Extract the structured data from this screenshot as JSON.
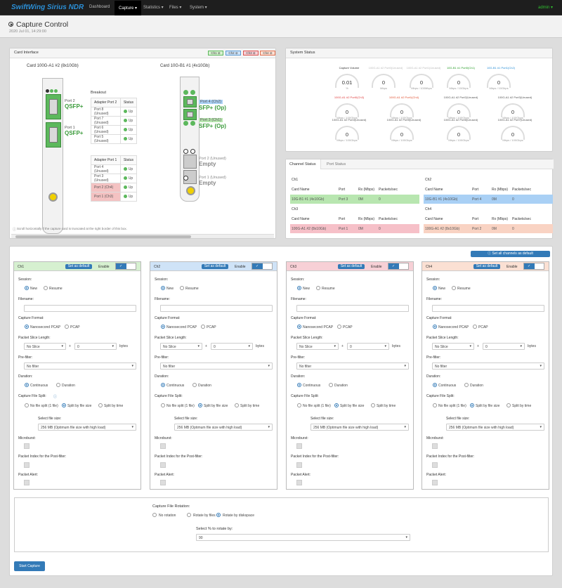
{
  "nav": {
    "brand": "SwiftWing Sirius NDR",
    "items": [
      "Dashboard",
      "Capture ▾",
      "Statistics ▾",
      "Files ▾",
      "System ▾"
    ],
    "user": "admin ▾"
  },
  "header": {
    "title": "Capture Control",
    "timestamp": "2020 Jul 01, 14:29:00"
  },
  "card_interface": {
    "title": "Card Interface",
    "chips": [
      "Ch1 ⊘",
      "Ch2 ⊘",
      "Ch3 ⊘",
      "Ch4 ⊘"
    ],
    "card1": {
      "name": "Card 100G-A1 #2 (8x10Gb)",
      "port2": "Port 2",
      "port2_type": "QSFP+",
      "port1": "Port 1",
      "port1_type": "QSFP+"
    },
    "card2": {
      "name": "Card 10G-B1 #1 (4x10Gb)",
      "p4": "Port 4 (Ch2)",
      "p4_type": "SFP+ (Op)",
      "p3": "Port 3 (Ch1)",
      "p3_type": "SFP+ (Op)",
      "p2": "Port 2 (Unused)",
      "p2_type": "Empty",
      "p1": "Port 1 (Unused)",
      "p1_type": "Empty"
    },
    "breakout": "Breakout",
    "table2": {
      "header": [
        "Adapter Port 2",
        "Status"
      ],
      "rows": [
        [
          "Port 8 (Unused)",
          "Up"
        ],
        [
          "Port 7 (Unused)",
          "Up"
        ],
        [
          "Port 6 (Unused)",
          "Up"
        ],
        [
          "Port 5 (Unused)",
          "Up"
        ]
      ]
    },
    "table1": {
      "header": [
        "Adapter Port 1",
        "Status"
      ],
      "rows": [
        [
          "Port 4 (Unused)",
          "Up"
        ],
        [
          "Port 3 (Unused)",
          "Up"
        ],
        [
          "Port 2 (Ch4)",
          "Up"
        ],
        [
          "Port 1 (Ch3)",
          "Up"
        ]
      ]
    },
    "note": "Scroll horizontally if the capture card is truncated at the right border of this box."
  },
  "system_status": {
    "title": "System Status",
    "gauges": [
      {
        "t": "Capture Volume",
        "v": "0.01",
        "s": "%",
        "c": "#333"
      },
      {
        "t": "100G-A1 #2 Port0(Unused)",
        "v": "0",
        "s": "Mbps",
        "c": "#bbb"
      },
      {
        "t": "100G-A1 #2 Port1(Unused)",
        "v": "0",
        "s": "Mbps / 100Mbps",
        "c": "#bbb"
      },
      {
        "t": "10G-B1 #1 Port0(Ch1)",
        "v": "0",
        "s": "Mbps / 10Gbps",
        "c": "#2a9d2a"
      },
      {
        "t": "10G-B1 #1 Port1(Ch2)",
        "v": "0",
        "s": "Mbps / 10Gbps",
        "c": "#2a8fd6"
      },
      {
        "t": "100G-A1 #2 Port0(Ch3)",
        "v": "0",
        "s": "Mbps / 100Gbps",
        "c": "#e04040"
      },
      {
        "t": "100G-A1 #2 Port1(Ch4)",
        "v": "0",
        "s": "Mbps / 100Gbps",
        "c": "#e05030"
      },
      {
        "t": "100G-A1 #2 Port2(Unused)",
        "v": "0",
        "s": "Mbps / 100Gbps",
        "c": "#555"
      },
      {
        "t": "100G-A1 #2 Port3(Unused)",
        "v": "0",
        "s": "Mbps / 100Gbps",
        "c": "#555"
      },
      {
        "t": "100G-A1 #2 Port4(Unused)",
        "v": "0",
        "s": "Mbps / 100Gbps",
        "c": "#555"
      },
      {
        "t": "100G-A1 #2 Port5(Unused)",
        "v": "0",
        "s": "Mbps / 100Gbps",
        "c": "#555"
      },
      {
        "t": "100G-A1 #2 Port6(Unused)",
        "v": "0",
        "s": "Mbps / 100Gbps",
        "c": "#555"
      },
      {
        "t": "100G-A1 #2 Port7(Unused)",
        "v": "0",
        "s": "Mbps / 100Gbps",
        "c": "#555"
      }
    ]
  },
  "channel_status": {
    "tabs": [
      "Channel Status",
      "Port Status"
    ],
    "header": [
      "Card Name",
      "Port",
      "Rx (Mbps)",
      "Packets/sec"
    ],
    "channels": [
      {
        "name": "Ch1",
        "row": [
          "10G-B1 #1 (4x10Gb)",
          "Port 3",
          "0M",
          "0"
        ],
        "color": "#b8e6b0"
      },
      {
        "name": "Ch2",
        "row": [
          "10G-B1 #1 (4x10Gb)",
          "Port 4",
          "0M",
          "0"
        ],
        "color": "#a9d0f5"
      },
      {
        "name": "Ch3",
        "row": [
          "100G-A1 #2 (8x10Gb)",
          "Port 1",
          "0M",
          "0"
        ],
        "color": "#f6c0c8"
      },
      {
        "name": "Ch4",
        "row": [
          "100G-A1 #2 (8x10Gb)",
          "Port 2",
          "0M",
          "0"
        ],
        "color": "#f9d3c3"
      }
    ]
  },
  "set_all": "Set all channels as default",
  "channel_forms": [
    {
      "title": "Ch1",
      "icon": "⊟",
      "color": "#d6f0d0"
    },
    {
      "title": "Ch2",
      "icon": "",
      "color": "#cfe3f7"
    },
    {
      "title": "Ch3",
      "icon": "",
      "color": "#f7d0d6"
    },
    {
      "title": "Ch4",
      "icon": "",
      "color": "#fbe0d3"
    }
  ],
  "form": {
    "set_default": "Set as default",
    "enable": "Enable",
    "session": "Session:",
    "new": "New",
    "resume": "Resume",
    "filename": "Filename:",
    "capture_format": "Capture Format:",
    "ns_pcap": "Nanosecond PCAP",
    "pcap": "PCAP",
    "slice_len": "Packet Slice Length:",
    "no_slice": "No Slice",
    "plus": "+",
    "slice_val": "0",
    "bytes": "bytes",
    "prefilter": "Pre-filter:",
    "no_filter": "No filter",
    "duration": "Duration:",
    "continuous": "Continuous",
    "duration_opt": "Duration",
    "split": "Capture File Split:",
    "no_split": "No file split (1 file)",
    "split_size": "Split by file size",
    "split_time": "Split by time",
    "select_size": "Select file size:",
    "size_val": "256 MB (Optimum file size with high load)",
    "microburst": "Microburst:",
    "packet_index": "Packet Index for the Post-filter:",
    "packet_alert": "Packet Alert:"
  },
  "rotation": {
    "label": "Capture File Rotation:",
    "no_rot": "No rotation",
    "by_files": "Rotate by files",
    "by_disk": "Rotate by diskspace",
    "percent_label": "Select % to rotate by:",
    "percent_val": "90"
  },
  "start_button": "Start Capture"
}
